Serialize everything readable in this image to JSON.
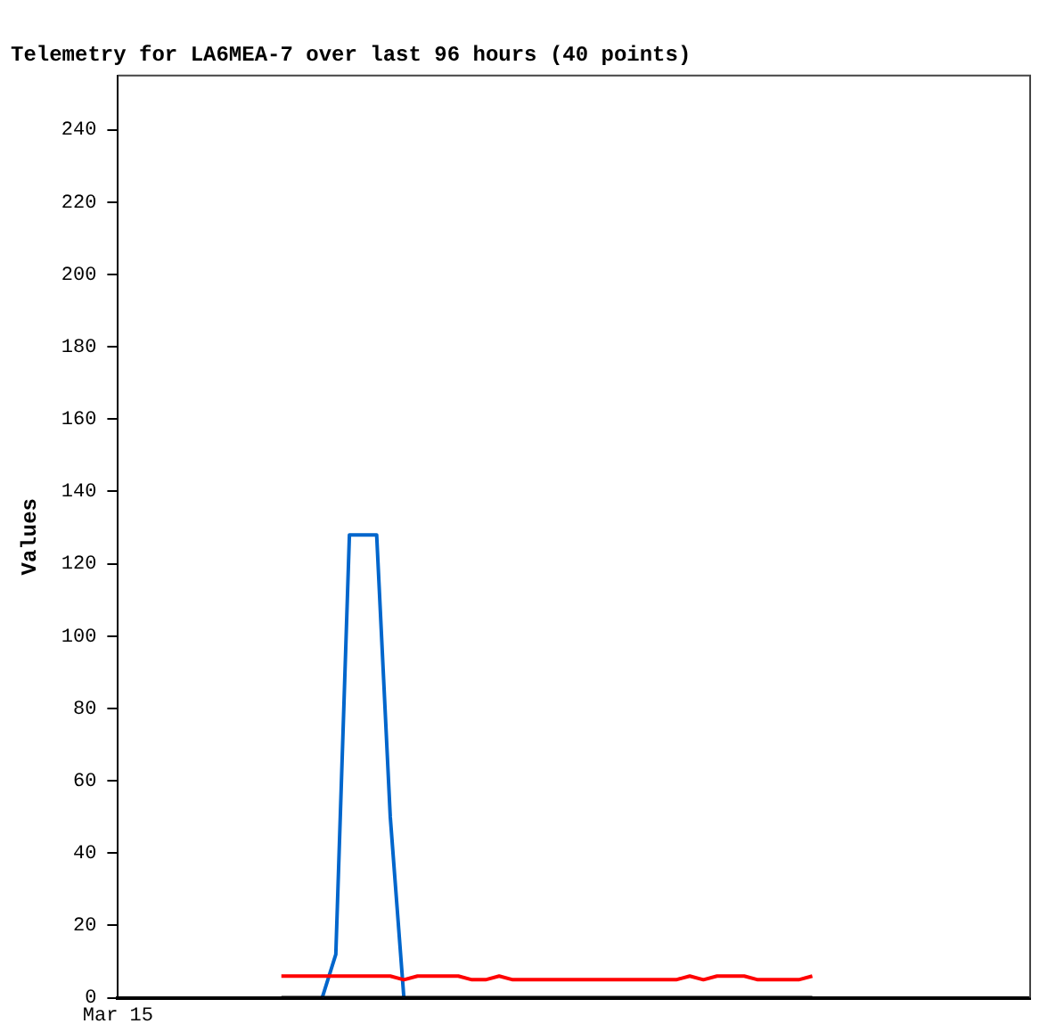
{
  "chart_data": {
    "type": "line",
    "title": "Telemetry for LA6MEA-7 over last 96 hours (40 points)",
    "ylabel": "Values",
    "categories": [
      "Mar 15",
      null,
      null,
      null,
      null,
      null,
      null,
      null,
      null,
      null,
      null,
      null,
      null,
      null,
      null,
      null,
      null,
      null,
      null,
      null,
      null,
      null,
      null,
      null,
      null,
      null,
      null,
      null,
      null,
      null,
      null,
      null,
      null,
      null,
      null,
      null,
      null,
      null,
      null,
      null,
      null,
      null,
      null,
      null,
      null,
      null,
      null,
      null,
      null,
      null,
      null,
      null,
      null,
      null,
      null,
      null,
      null,
      null,
      null,
      null,
      null,
      null,
      null,
      null,
      null,
      null,
      null,
      null
    ],
    "ylim": [
      0,
      255
    ],
    "yticks": [
      0,
      20,
      40,
      60,
      80,
      100,
      120,
      140,
      160,
      180,
      200,
      220,
      240
    ],
    "grid": false,
    "legend": false,
    "marker": "none",
    "line_style": "solid",
    "series": [
      {
        "color": "#000000",
        "values": [
          null,
          null,
          null,
          null,
          null,
          null,
          null,
          null,
          null,
          null,
          null,
          null,
          0,
          0,
          0,
          0,
          0,
          0,
          0,
          0,
          0,
          0,
          0,
          0,
          0,
          0,
          0,
          0,
          0,
          0,
          0,
          0,
          0,
          0,
          0,
          0,
          0,
          0,
          0,
          0,
          0,
          0,
          0,
          0,
          0,
          0,
          0,
          0,
          0,
          0,
          0,
          0,
          null,
          null,
          null,
          null,
          null,
          null,
          null,
          null,
          null,
          null,
          null,
          null,
          null,
          null,
          null,
          null
        ]
      },
      {
        "color": "#ff0000",
        "values": [
          null,
          null,
          null,
          null,
          null,
          null,
          null,
          null,
          null,
          null,
          null,
          null,
          6,
          6,
          6,
          6,
          6,
          6,
          6,
          6,
          6,
          5,
          6,
          6,
          6,
          6,
          5,
          5,
          6,
          5,
          5,
          5,
          5,
          5,
          5,
          5,
          5,
          5,
          5,
          5,
          5,
          5,
          6,
          5,
          6,
          6,
          6,
          5,
          5,
          5,
          5,
          6,
          null,
          null,
          null,
          null,
          null,
          null,
          null,
          null,
          null,
          null,
          null,
          null,
          null,
          null,
          null,
          null
        ]
      },
      {
        "color": "#0066cc",
        "values": [
          null,
          null,
          null,
          null,
          null,
          null,
          null,
          null,
          null,
          null,
          null,
          null,
          null,
          null,
          null,
          0,
          12,
          128,
          128,
          128,
          50,
          0,
          null,
          null,
          null,
          null,
          null,
          null,
          null,
          null,
          null,
          null,
          null,
          null,
          null,
          null,
          null,
          null,
          null,
          null,
          null,
          null,
          null,
          null,
          null,
          null,
          null,
          null,
          null,
          null,
          null,
          null,
          null,
          null,
          null,
          null,
          null,
          null,
          null,
          null,
          null,
          null,
          null,
          null,
          null,
          null,
          null,
          null
        ]
      }
    ]
  }
}
